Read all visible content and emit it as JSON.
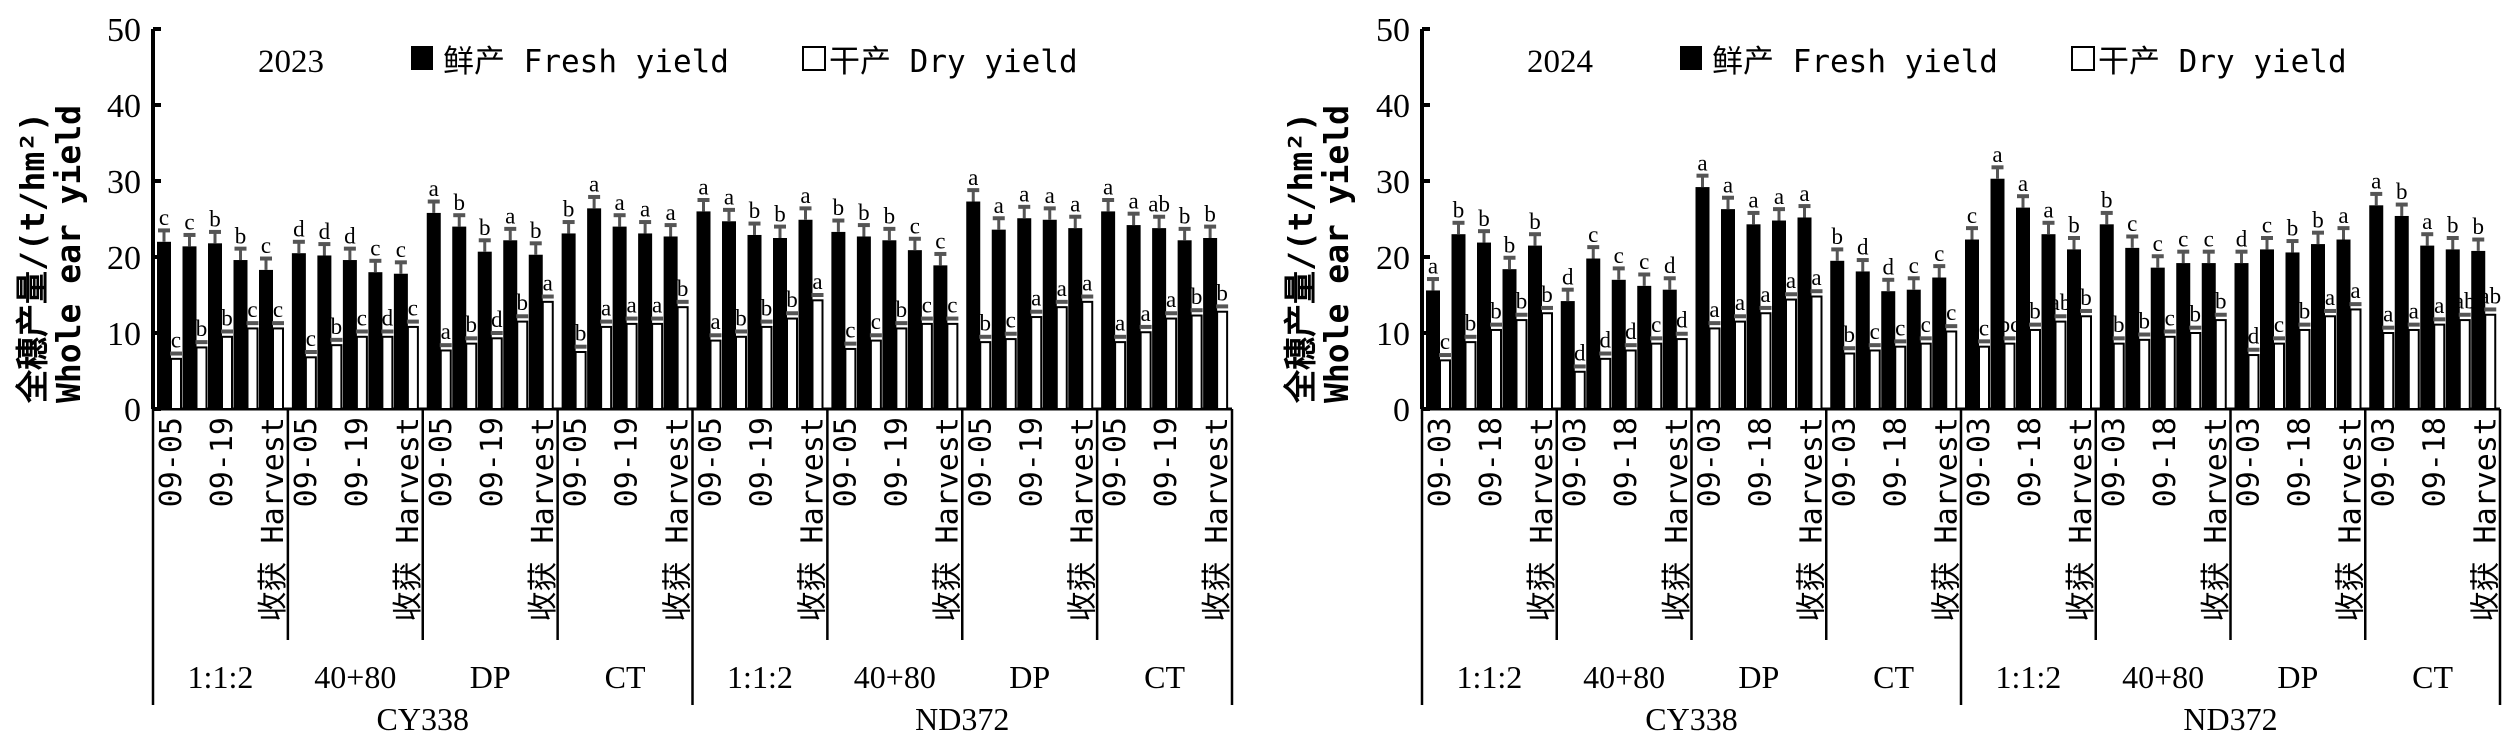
{
  "chart_data": [
    {
      "type": "bar",
      "year": "2023",
      "ylabel_cn": "全穗产量/(t/hm²)",
      "ylabel_en": "Whole ear yield",
      "ylim": [
        0,
        50
      ],
      "yticks": [
        "0",
        "10",
        "20",
        "30",
        "40",
        "50"
      ],
      "legend": {
        "fresh": "鲜产 Fresh yield",
        "dry": "干产 Dry yield",
        "placement": "top"
      },
      "cultivars": [
        "CY338",
        "ND372"
      ],
      "treatments": [
        "1:1:2",
        "40+80",
        "DP",
        "CT",
        "1:1:2",
        "40+80",
        "DP",
        "CT"
      ],
      "date_labels": [
        "09-05",
        "09-19",
        "收获 Harvest"
      ],
      "series": [
        {
          "name": "Fresh yield",
          "color": "#000000",
          "values": [
            22.0,
            21.4,
            21.8,
            19.6,
            18.3,
            20.5,
            20.2,
            19.6,
            18.0,
            17.8,
            25.8,
            24.0,
            20.7,
            22.2,
            20.3,
            23.1,
            26.4,
            24.0,
            23.1,
            22.7,
            26.0,
            24.7,
            22.9,
            22.5,
            24.9,
            23.3,
            22.7,
            22.2,
            20.9,
            18.9,
            27.3,
            23.6,
            25.1,
            24.9,
            23.8,
            26.0,
            24.2,
            23.8,
            22.2,
            22.5
          ],
          "letters": [
            "c",
            "c",
            "b",
            "b",
            "c",
            "d",
            "d",
            "d",
            "c",
            "c",
            "a",
            "b",
            "b",
            "a",
            "b",
            "b",
            "a",
            "a",
            "a",
            "a",
            "a",
            "a",
            "b",
            "b",
            "a",
            "b",
            "b",
            "b",
            "c",
            "c",
            "a",
            "a",
            "a",
            "a",
            "a",
            "a",
            "a",
            "ab",
            "b",
            "b"
          ]
        },
        {
          "name": "Dry yield",
          "color": "#ffffff",
          "values": [
            6.6,
            8.1,
            9.5,
            10.6,
            10.6,
            6.8,
            8.4,
            9.5,
            9.5,
            10.8,
            7.7,
            8.6,
            9.3,
            11.5,
            14.1,
            7.5,
            10.8,
            11.2,
            11.2,
            13.4,
            9.0,
            9.5,
            10.8,
            11.9,
            14.3,
            7.9,
            9.0,
            10.6,
            11.2,
            11.2,
            8.8,
            9.2,
            12.1,
            13.4,
            14.1,
            8.8,
            10.1,
            11.9,
            12.3,
            12.8
          ],
          "letters": [
            "c",
            "b",
            "b",
            "c",
            "c",
            "c",
            "b",
            "c",
            "d",
            "c",
            "a",
            "b",
            "d",
            "b",
            "a",
            "b",
            "a",
            "a",
            "a",
            "b",
            "a",
            "b",
            "b",
            "b",
            "a",
            "c",
            "c",
            "b",
            "c",
            "c",
            "b",
            "c",
            "a",
            "a",
            "a",
            "a",
            "a",
            "a",
            "b",
            "b"
          ]
        }
      ]
    },
    {
      "type": "bar",
      "year": "2024",
      "ylabel_cn": "全穗产量/(t/hm²)",
      "ylabel_en": "Whole ear yield",
      "ylim": [
        0,
        50
      ],
      "yticks": [
        "0",
        "10",
        "20",
        "30",
        "40",
        "50"
      ],
      "legend": {
        "fresh": "鲜产 Fresh yield",
        "dry": "干产 Dry yield",
        "placement": "top"
      },
      "cultivars": [
        "CY338",
        "ND372"
      ],
      "treatments": [
        "1:1:2",
        "40+80",
        "DP",
        "CT",
        "1:1:2",
        "40+80",
        "DP",
        "CT"
      ],
      "date_labels": [
        "09-03",
        "09-18",
        "收获 Harvest"
      ],
      "series": [
        {
          "name": "Fresh yield",
          "color": "#000000",
          "values": [
            15.6,
            23.0,
            21.9,
            18.4,
            21.5,
            14.2,
            19.8,
            17.0,
            16.2,
            15.7,
            29.2,
            26.3,
            24.3,
            24.8,
            25.2,
            19.5,
            18.1,
            15.5,
            15.7,
            17.3,
            22.3,
            30.3,
            26.5,
            23.0,
            21.0,
            24.3,
            21.2,
            18.6,
            19.2,
            19.2,
            19.2,
            21.0,
            20.6,
            21.7,
            22.3,
            26.8,
            25.4,
            21.5,
            21.0,
            20.8
          ],
          "letters": [
            "a",
            "b",
            "b",
            "b",
            "b",
            "d",
            "c",
            "c",
            "c",
            "d",
            "a",
            "a",
            "a",
            "a",
            "a",
            "b",
            "d",
            "d",
            "c",
            "c",
            "c",
            "a",
            "a",
            "a",
            "b",
            "b",
            "c",
            "c",
            "c",
            "c",
            "d",
            "c",
            "b",
            "b",
            "a",
            "a",
            "b",
            "a",
            "b",
            "b"
          ]
        },
        {
          "name": "Dry yield",
          "color": "#ffffff",
          "values": [
            6.4,
            8.8,
            10.4,
            11.7,
            12.6,
            4.9,
            6.6,
            7.7,
            8.6,
            9.2,
            10.6,
            11.5,
            12.6,
            14.4,
            14.8,
            7.3,
            7.7,
            8.2,
            8.6,
            10.2,
            8.2,
            8.6,
            10.4,
            11.5,
            12.2,
            8.6,
            9.1,
            9.5,
            10.0,
            11.7,
            7.1,
            8.6,
            10.4,
            12.2,
            13.1,
            10.0,
            10.4,
            11.1,
            11.7,
            12.4
          ],
          "letters": [
            "c",
            "b",
            "b",
            "b",
            "b",
            "d",
            "d",
            "d",
            "c",
            "d",
            "a",
            "a",
            "a",
            "a",
            "a",
            "b",
            "c",
            "c",
            "c",
            "c",
            "c",
            "bc",
            "b",
            "ab",
            "b",
            "b",
            "b",
            "c",
            "b",
            "b",
            "d",
            "c",
            "b",
            "a",
            "a",
            "a",
            "a",
            "a",
            "ab",
            "ab"
          ]
        }
      ]
    }
  ]
}
